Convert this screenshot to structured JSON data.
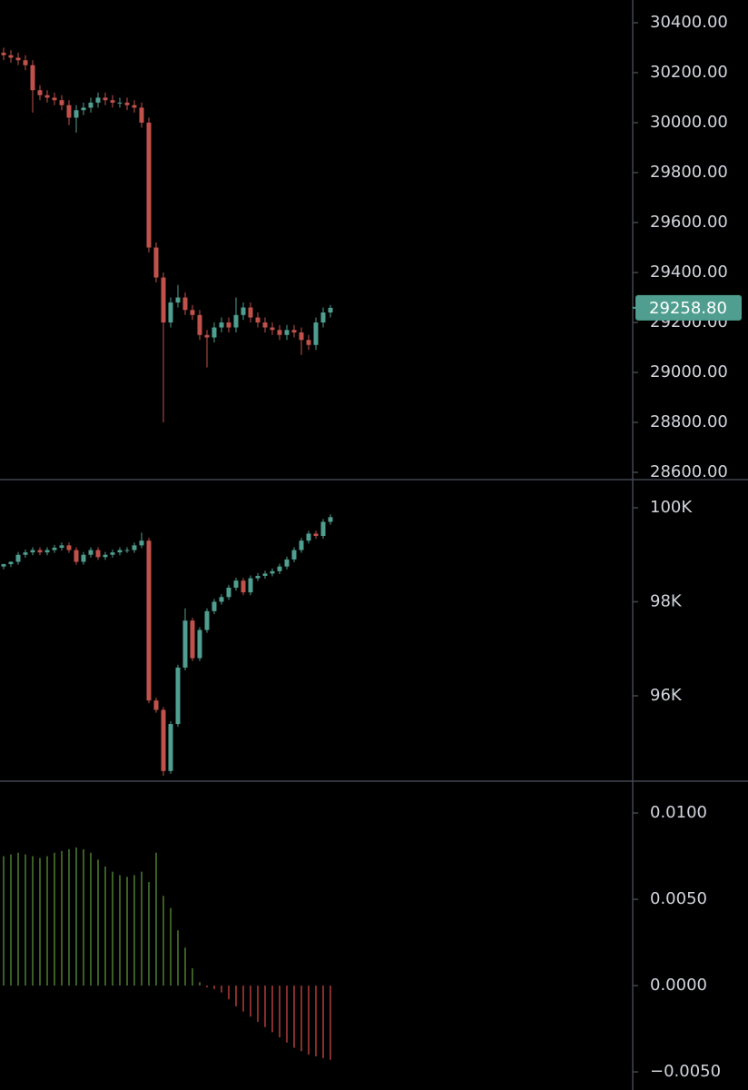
{
  "chart_data": [
    {
      "type": "candlestick",
      "up_color": "#4f9e8f",
      "down_color": "#c0524b",
      "ylim": [
        28571,
        30491
      ],
      "yticks": [
        {
          "value": 28600,
          "label": "28600.00"
        },
        {
          "value": 28800,
          "label": "28800.00"
        },
        {
          "value": 29000,
          "label": "29000.00"
        },
        {
          "value": 29200,
          "label": "29200.00"
        },
        {
          "value": 29400,
          "label": "29400.00"
        },
        {
          "value": 29600,
          "label": "29600.00"
        },
        {
          "value": 29800,
          "label": "29800.00"
        },
        {
          "value": 30000,
          "label": "30000.00"
        },
        {
          "value": 30200,
          "label": "30200.00"
        },
        {
          "value": 30400,
          "label": "30400.00"
        }
      ],
      "price_label": {
        "value": 29258.8,
        "label": "29258.80",
        "color": "#4f9e8f"
      },
      "open": [
        30280,
        30270,
        30260,
        30250,
        30230,
        30130,
        30110,
        30100,
        30090,
        30070,
        30020,
        30050,
        30060,
        30080,
        30100,
        30090,
        30080,
        30080,
        30070,
        30060,
        30000,
        29500,
        29380,
        29200,
        29280,
        29300,
        29250,
        29230,
        29150,
        29140,
        29180,
        29200,
        29180,
        29230,
        29260,
        29220,
        29200,
        29180,
        29170,
        29150,
        29170,
        29160,
        29130,
        29110,
        29200,
        29240
      ],
      "high": [
        30300,
        30290,
        30280,
        30270,
        30250,
        30150,
        30130,
        30120,
        30110,
        30090,
        30070,
        30080,
        30100,
        30120,
        30120,
        30110,
        30100,
        30100,
        30090,
        30080,
        30020,
        29520,
        29400,
        29300,
        29350,
        29320,
        29270,
        29250,
        29170,
        29200,
        29220,
        29220,
        29300,
        29280,
        29280,
        29240,
        29220,
        29200,
        29190,
        29190,
        29190,
        29180,
        29150,
        29220,
        29260,
        29270
      ],
      "low": [
        30250,
        30240,
        30230,
        30210,
        30040,
        30090,
        30080,
        30070,
        30050,
        29990,
        29960,
        30030,
        30040,
        30060,
        30070,
        30060,
        30060,
        30050,
        30040,
        29980,
        29480,
        29360,
        28800,
        29180,
        29260,
        29230,
        29210,
        29130,
        29020,
        29120,
        29160,
        29160,
        29160,
        29210,
        29200,
        29180,
        29160,
        29150,
        29130,
        29130,
        29140,
        29070,
        29090,
        29090,
        29180,
        29220
      ],
      "close": [
        30270,
        30260,
        30250,
        30230,
        30130,
        30110,
        30100,
        30090,
        30070,
        30020,
        30050,
        30060,
        30080,
        30100,
        30090,
        30080,
        30080,
        30070,
        30060,
        30000,
        29500,
        29380,
        29200,
        29280,
        29300,
        29250,
        29230,
        29150,
        29140,
        29180,
        29200,
        29180,
        29230,
        29260,
        29220,
        29200,
        29180,
        29170,
        29150,
        29170,
        29160,
        29130,
        29110,
        29200,
        29240,
        29258.8
      ]
    },
    {
      "type": "candlestick",
      "up_color": "#4f9e8f",
      "down_color": "#c0524b",
      "ylim": [
        94184,
        100560
      ],
      "yticks": [
        {
          "value": 96000,
          "label": "96K"
        },
        {
          "value": 98000,
          "label": "98K"
        },
        {
          "value": 100000,
          "label": "100K"
        }
      ],
      "open": [
        98750,
        98800,
        98850,
        99000,
        99050,
        99100,
        99050,
        99100,
        99150,
        99200,
        99100,
        98850,
        99000,
        99100,
        98950,
        99000,
        99050,
        99100,
        99100,
        99200,
        99300,
        95900,
        95700,
        94400,
        95400,
        96600,
        97600,
        96800,
        97400,
        97800,
        98000,
        98100,
        98300,
        98450,
        98200,
        98500,
        98550,
        98600,
        98650,
        98750,
        98900,
        99100,
        99300,
        99450,
        99400,
        99700
      ],
      "high": [
        98810,
        98860,
        99060,
        99110,
        99160,
        99160,
        99160,
        99210,
        99260,
        99260,
        99160,
        99060,
        99160,
        99160,
        99060,
        99110,
        99160,
        99160,
        99260,
        99470,
        99360,
        95960,
        95760,
        95460,
        96660,
        97860,
        97660,
        97460,
        97860,
        98060,
        98160,
        98360,
        98510,
        98510,
        98560,
        98610,
        98660,
        98710,
        98810,
        98960,
        99160,
        99360,
        99510,
        99510,
        99760,
        99860
      ],
      "low": [
        98690,
        98740,
        98790,
        98940,
        98990,
        98990,
        98990,
        99040,
        99090,
        99040,
        98790,
        98790,
        98940,
        98890,
        98890,
        98940,
        98990,
        99040,
        99040,
        99140,
        95840,
        95640,
        94300,
        94340,
        95340,
        96540,
        96740,
        96740,
        97340,
        97740,
        97940,
        98040,
        98240,
        98140,
        98140,
        98440,
        98490,
        98540,
        98590,
        98690,
        98840,
        99040,
        99240,
        99340,
        99340,
        99640
      ],
      "close": [
        98800,
        98850,
        99000,
        99050,
        99100,
        99050,
        99100,
        99150,
        99200,
        99100,
        98850,
        99000,
        99100,
        98950,
        99000,
        99050,
        99100,
        99100,
        99200,
        99300,
        95900,
        95700,
        94400,
        95400,
        96600,
        97600,
        96800,
        97400,
        97800,
        98000,
        98100,
        98300,
        98450,
        98200,
        98500,
        98550,
        98600,
        98650,
        98750,
        98900,
        99100,
        99300,
        99450,
        99400,
        99700,
        99800
      ]
    },
    {
      "type": "histogram",
      "up_color": "#4e7d2f",
      "down_color": "#b23c3c",
      "ylim": [
        -0.00605,
        0.01174
      ],
      "yticks": [
        {
          "value": -0.005,
          "label": "−0.0050"
        },
        {
          "value": 0,
          "label": "0.0000"
        },
        {
          "value": 0.005,
          "label": "0.0050"
        },
        {
          "value": 0.01,
          "label": "0.0100"
        }
      ],
      "values": [
        0.0075,
        0.0076,
        0.0077,
        0.0076,
        0.0075,
        0.0074,
        0.0075,
        0.0077,
        0.0078,
        0.0079,
        0.008,
        0.0079,
        0.0077,
        0.0073,
        0.0069,
        0.0066,
        0.0064,
        0.0063,
        0.0064,
        0.0066,
        0.006,
        0.0077,
        0.0052,
        0.0045,
        0.0032,
        0.0022,
        0.001,
        0.0002,
        -0.0001,
        -0.0002,
        -0.0004,
        -0.0008,
        -0.0012,
        -0.0015,
        -0.0018,
        -0.0021,
        -0.0024,
        -0.0027,
        -0.003,
        -0.0033,
        -0.0036,
        -0.0038,
        -0.004,
        -0.0041,
        -0.0042,
        -0.0043
      ]
    }
  ]
}
